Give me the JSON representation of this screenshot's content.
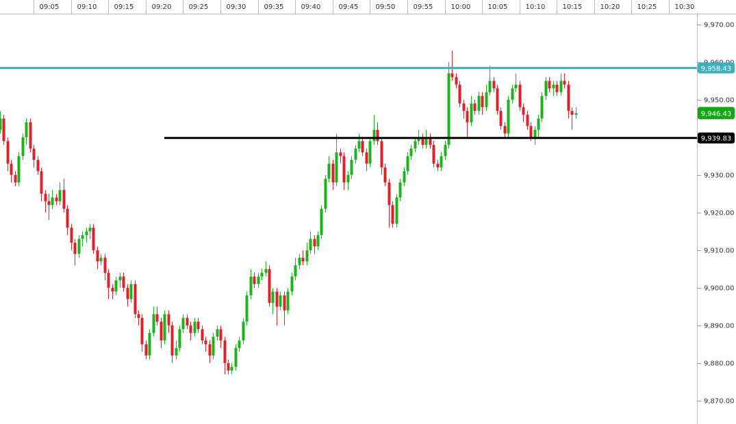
{
  "chart_data": {
    "type": "candlestick",
    "open": [
      9942,
      9945,
      9939,
      9933,
      9930,
      9928,
      9935,
      9940,
      9944,
      9937,
      9934,
      9931,
      9925,
      9923,
      9922,
      9924,
      9923,
      9926,
      9921,
      9916,
      9912,
      9909,
      9913,
      9914,
      9915,
      9916,
      9910,
      9907,
      9908,
      9904,
      9900,
      9899,
      9902,
      9903,
      9900,
      9897,
      9901,
      9893,
      9892,
      9885,
      9882,
      9888,
      9893,
      9891,
      9886,
      9893,
      9890,
      9882,
      9884,
      9889,
      9892,
      9890,
      9888,
      9891,
      9889,
      9886,
      9885,
      9882,
      9887,
      9889,
      9886,
      9880,
      9878,
      9879,
      9884,
      9886,
      9891,
      9898,
      9903,
      9901,
      9903,
      9904,
      9905,
      9896,
      9899,
      9895,
      9898,
      9894,
      9899,
      9903,
      9906,
      9908,
      9907,
      9910,
      9913,
      9911,
      9914,
      9921,
      9929,
      9933,
      9928,
      9936,
      9935,
      9928,
      9930,
      9934,
      9937,
      9939,
      9936,
      9933,
      9939,
      9942,
      9939,
      9932,
      9928,
      9922,
      9917,
      9924,
      9928,
      9931,
      9935,
      9937,
      9939,
      9940,
      9938,
      9940,
      9938,
      9933,
      9932,
      9935,
      9938,
      9957,
      9956,
      9954,
      9949,
      9947,
      9944,
      9949,
      9947,
      9951,
      9948,
      9952,
      9955,
      9953,
      9947,
      9943,
      9941,
      9950,
      9953,
      9954,
      9948,
      9946,
      9943,
      9940,
      9942,
      9945,
      9951,
      9955,
      9953,
      9954,
      9952,
      9955,
      9954,
      9947,
      9946
    ],
    "high": [
      9947,
      9946,
      9940,
      9934,
      9931,
      9936,
      9941,
      9945,
      9945,
      9938,
      9935,
      9932,
      9926,
      9925,
      9926,
      9925,
      9928,
      9929,
      9922,
      9917,
      9913,
      9914,
      9915,
      9916,
      9917,
      9917,
      9911,
      9909,
      9909,
      9905,
      9901,
      9903,
      9904,
      9904,
      9901,
      9902,
      9902,
      9894,
      9893,
      9886,
      9889,
      9895,
      9895,
      9892,
      9894,
      9894,
      9891,
      9886,
      9890,
      9893,
      9893,
      9891,
      9892,
      9892,
      9890,
      9887,
      9886,
      9888,
      9890,
      9890,
      9887,
      9881,
      9880,
      9885,
      9887,
      9892,
      9899,
      9905,
      9904,
      9904,
      9905,
      9907,
      9906,
      9900,
      9900,
      9899,
      9899,
      9900,
      9904,
      9908,
      9909,
      9910,
      9912,
      9915,
      9914,
      9915,
      9922,
      9930,
      9935,
      9934,
      9941,
      9937,
      9936,
      9931,
      9935,
      9938,
      9941,
      9940,
      9937,
      9940,
      9946,
      9944,
      9940,
      9933,
      9929,
      9923,
      9925,
      9929,
      9932,
      9936,
      9938,
      9940,
      9942,
      9941,
      9942,
      9941,
      9939,
      9934,
      9936,
      9939,
      9960,
      9963,
      9957,
      9955,
      9950,
      9948,
      9951,
      9950,
      9952,
      9952,
      9954,
      9959,
      9956,
      9954,
      9948,
      9944,
      9951,
      9954,
      9957,
      9955,
      9949,
      9947,
      9944,
      9943,
      9946,
      9952,
      9956,
      9956,
      9955,
      9955,
      9957,
      9957,
      9955,
      9948,
      9948
    ],
    "low": [
      9941,
      9938,
      9931,
      9928,
      9927,
      9927,
      9934,
      9938,
      9936,
      9932,
      9930,
      9923,
      9920,
      9918,
      9921,
      9922,
      9922,
      9920,
      9914,
      9910,
      9906,
      9908,
      9911,
      9912,
      9913,
      9909,
      9905,
      9906,
      9902,
      9897,
      9897,
      9898,
      9900,
      9899,
      9895,
      9896,
      9892,
      9890,
      9883,
      9881,
      9881,
      9887,
      9890,
      9884,
      9885,
      9888,
      9880,
      9881,
      9883,
      9888,
      9889,
      9886,
      9887,
      9888,
      9885,
      9883,
      9880,
      9881,
      9886,
      9884,
      9877,
      9877,
      9877,
      9878,
      9883,
      9885,
      9890,
      9897,
      9900,
      9900,
      9902,
      9903,
      9895,
      9893,
      9890,
      9894,
      9890,
      9893,
      9898,
      9902,
      9905,
      9906,
      9906,
      9909,
      9909,
      9910,
      9913,
      9920,
      9928,
      9926,
      9927,
      9933,
      9926,
      9926,
      9929,
      9933,
      9936,
      9935,
      9931,
      9932,
      9938,
      9938,
      9930,
      9927,
      9916,
      9916,
      9916,
      9923,
      9927,
      9930,
      9934,
      9936,
      9938,
      9937,
      9937,
      9937,
      9932,
      9931,
      9931,
      9934,
      9937,
      9955,
      9953,
      9948,
      9945,
      9940,
      9943,
      9946,
      9946,
      9946,
      9947,
      9951,
      9952,
      9946,
      9942,
      9940,
      9940,
      9949,
      9952,
      9947,
      9944,
      9942,
      9939,
      9938,
      9940,
      9944,
      9950,
      9952,
      9951,
      9951,
      9951,
      9953,
      9945,
      9942,
      9945
    ],
    "close": [
      9945,
      9939,
      9933,
      9930,
      9928,
      9935,
      9940,
      9944,
      9937,
      9934,
      9931,
      9925,
      9923,
      9922,
      9924,
      9923,
      9926,
      9921,
      9916,
      9912,
      9909,
      9913,
      9914,
      9915,
      9916,
      9910,
      9907,
      9908,
      9904,
      9900,
      9899,
      9902,
      9903,
      9900,
      9897,
      9901,
      9893,
      9892,
      9885,
      9882,
      9888,
      9893,
      9891,
      9886,
      9893,
      9890,
      9882,
      9884,
      9889,
      9892,
      9890,
      9888,
      9891,
      9889,
      9886,
      9885,
      9882,
      9887,
      9889,
      9886,
      9880,
      9878,
      9879,
      9884,
      9886,
      9891,
      9898,
      9903,
      9901,
      9903,
      9904,
      9905,
      9896,
      9899,
      9895,
      9898,
      9894,
      9899,
      9903,
      9906,
      9908,
      9907,
      9910,
      9913,
      9911,
      9914,
      9921,
      9929,
      9933,
      9928,
      9936,
      9935,
      9928,
      9930,
      9934,
      9937,
      9939,
      9936,
      9933,
      9939,
      9942,
      9939,
      9932,
      9928,
      9922,
      9917,
      9924,
      9928,
      9931,
      9935,
      9937,
      9939,
      9940,
      9938,
      9940,
      9938,
      9933,
      9932,
      9935,
      9938,
      9957,
      9956,
      9954,
      9949,
      9947,
      9944,
      9949,
      9947,
      9951,
      9948,
      9952,
      9955,
      9953,
      9947,
      9943,
      9941,
      9950,
      9953,
      9954,
      9948,
      9946,
      9943,
      9940,
      9942,
      9945,
      9951,
      9955,
      9953,
      9954,
      9952,
      9955,
      9954,
      9947,
      9946,
      9946.43
    ],
    "up_color": "#1db31d",
    "down_color": "#e0202a",
    "xlim": [
      0,
      186.5
    ],
    "xticks": [
      {
        "value": 9,
        "label": "09:05"
      },
      {
        "value": 19,
        "label": "09:10"
      },
      {
        "value": 29,
        "label": "09:15"
      },
      {
        "value": 39,
        "label": "09:20"
      },
      {
        "value": 49,
        "label": "09:25"
      },
      {
        "value": 59,
        "label": "09:30"
      },
      {
        "value": 69,
        "label": "09:35"
      },
      {
        "value": 79,
        "label": "09:40"
      },
      {
        "value": 89,
        "label": "09:45"
      },
      {
        "value": 99,
        "label": "09:50"
      },
      {
        "value": 109,
        "label": "09:55"
      },
      {
        "value": 119,
        "label": "10:00"
      },
      {
        "value": 129,
        "label": "10:05"
      },
      {
        "value": 139,
        "label": "10:10"
      },
      {
        "value": 149,
        "label": "10:15"
      },
      {
        "value": 159,
        "label": "10:20"
      },
      {
        "value": 169,
        "label": "10:25"
      },
      {
        "value": 179,
        "label": "10:30"
      }
    ],
    "ylim": [
      9863.8,
      9976.5
    ],
    "yticks": [
      {
        "value": 9870,
        "label": "9,870.00"
      },
      {
        "value": 9880,
        "label": "9,880.00"
      },
      {
        "value": 9890,
        "label": "9,890.00"
      },
      {
        "value": 9900,
        "label": "9,900.00"
      },
      {
        "value": 9910,
        "label": "9,910.00"
      },
      {
        "value": 9920,
        "label": "9,920.00"
      },
      {
        "value": 9930,
        "label": "9,930.00"
      },
      {
        "value": 9940,
        "label": "9,940.00"
      },
      {
        "value": 9950,
        "label": "9,950.00"
      },
      {
        "value": 9960,
        "label": "9,960.00"
      },
      {
        "value": 9970,
        "label": "9,970.00"
      }
    ],
    "price_lines": [
      {
        "value": 9958.43,
        "label": "9,958.43",
        "color": "#3bb0bf"
      },
      {
        "value": 9939.83,
        "label": "9,939.83",
        "color": "#000000"
      }
    ],
    "last_price": {
      "value": 9946.43,
      "label": "9,946.43",
      "color": "#13a813"
    }
  }
}
